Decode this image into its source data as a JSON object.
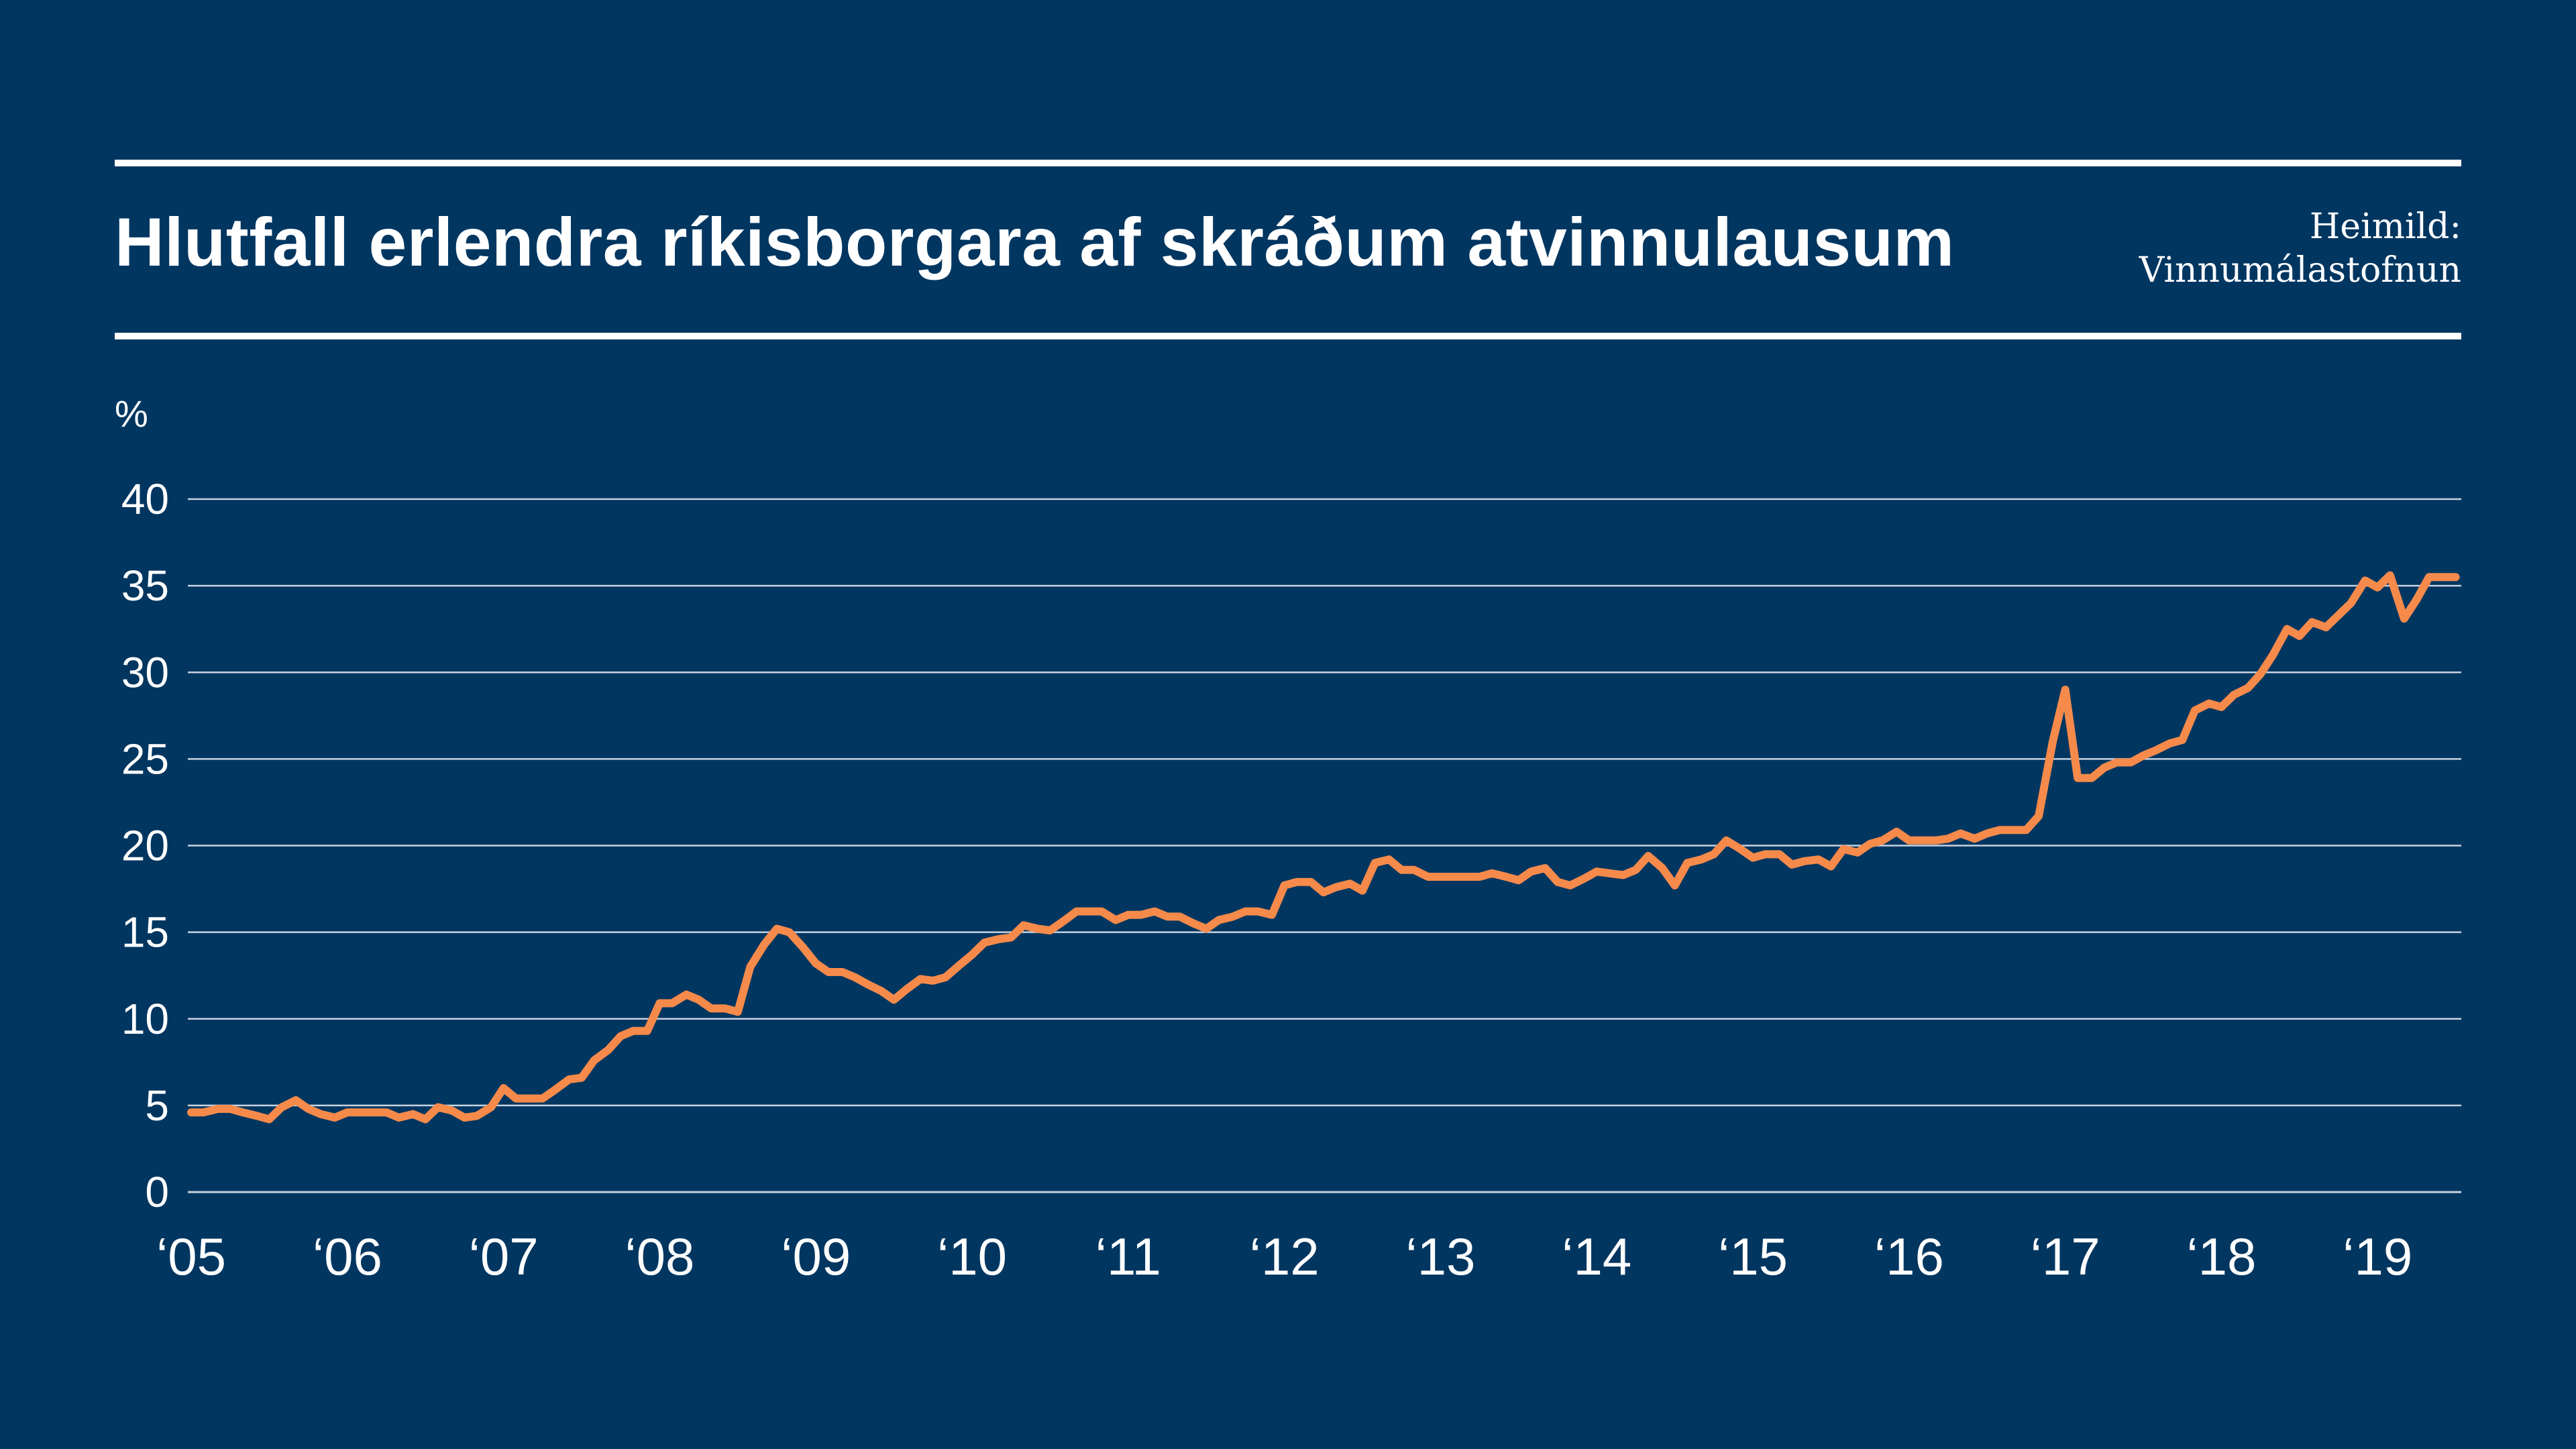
{
  "header": {
    "title": "Hlutfall erlendra ríkisborgara af skráðum atvinnulausum",
    "source_label": "Heimild:",
    "source_name": "Vinnumálastofnun"
  },
  "colors": {
    "background": "#003660",
    "text": "#ffffff",
    "gridline": "#c8d2e0",
    "series": "#f58a4b"
  },
  "chart_data": {
    "type": "line",
    "title": "Hlutfall erlendra ríkisborgara af skráðum atvinnulausum",
    "ylabel": "%",
    "xlabel": "",
    "ylim": [
      0,
      40
    ],
    "yticks": [
      0,
      5,
      10,
      15,
      20,
      25,
      30,
      35,
      40
    ],
    "yticks_labels": [
      "0",
      "5",
      "10",
      "15",
      "20",
      "25",
      "30",
      "35",
      "40"
    ],
    "xlim": [
      2005,
      2019.5
    ],
    "xticks": [
      2005,
      2006,
      2007,
      2008,
      2009,
      2010,
      2011,
      2012,
      2013,
      2014,
      2015,
      2016,
      2017,
      2018,
      2019
    ],
    "xtick_labels": [
      "‘05",
      "‘06",
      "‘07",
      "‘08",
      "‘09",
      "‘10",
      "‘11",
      "‘12",
      "‘13",
      "‘14",
      "‘15",
      "‘16",
      "‘17",
      "‘18",
      "‘19"
    ],
    "grid": true,
    "legend": "none",
    "series": [
      {
        "color": "#f58a4b",
        "x": [
          2005.0,
          2005.08,
          2005.17,
          2005.25,
          2005.33,
          2005.42,
          2005.5,
          2005.58,
          2005.67,
          2005.75,
          2005.83,
          2005.92,
          2006.0,
          2006.08,
          2006.17,
          2006.25,
          2006.33,
          2006.42,
          2006.5,
          2006.58,
          2006.67,
          2006.75,
          2006.83,
          2006.92,
          2007.0,
          2007.08,
          2007.17,
          2007.25,
          2007.33,
          2007.42,
          2007.5,
          2007.58,
          2007.67,
          2007.75,
          2007.83,
          2007.92,
          2008.0,
          2008.08,
          2008.17,
          2008.25,
          2008.33,
          2008.42,
          2008.5,
          2008.58,
          2008.67,
          2008.75,
          2008.83,
          2008.92,
          2009.0,
          2009.08,
          2009.17,
          2009.25,
          2009.33,
          2009.42,
          2009.5,
          2009.58,
          2009.67,
          2009.75,
          2009.83,
          2009.92,
          2010.0,
          2010.08,
          2010.17,
          2010.25,
          2010.33,
          2010.42,
          2010.5,
          2010.58,
          2010.67,
          2010.75,
          2010.83,
          2010.92,
          2011.0,
          2011.08,
          2011.17,
          2011.25,
          2011.33,
          2011.42,
          2011.5,
          2011.58,
          2011.67,
          2011.75,
          2011.83,
          2011.92,
          2012.0,
          2012.08,
          2012.17,
          2012.25,
          2012.33,
          2012.42,
          2012.5,
          2012.58,
          2012.67,
          2012.75,
          2012.83,
          2012.92,
          2013.0,
          2013.08,
          2013.17,
          2013.25,
          2013.33,
          2013.42,
          2013.5,
          2013.58,
          2013.67,
          2013.75,
          2013.83,
          2013.92,
          2014.0,
          2014.08,
          2014.17,
          2014.25,
          2014.33,
          2014.42,
          2014.5,
          2014.58,
          2014.67,
          2014.75,
          2014.83,
          2014.92,
          2015.0,
          2015.08,
          2015.17,
          2015.25,
          2015.33,
          2015.42,
          2015.5,
          2015.58,
          2015.67,
          2015.75,
          2015.83,
          2015.92,
          2016.0,
          2016.08,
          2016.17,
          2016.25,
          2016.33,
          2016.42,
          2016.5,
          2016.58,
          2016.67,
          2016.75,
          2016.83,
          2016.92,
          2017.0,
          2017.08,
          2017.17,
          2017.25,
          2017.33,
          2017.42,
          2017.5,
          2017.58,
          2017.67,
          2017.75,
          2017.83,
          2017.92,
          2018.0,
          2018.08,
          2018.17,
          2018.25,
          2018.33,
          2018.42,
          2018.5,
          2018.58,
          2018.67,
          2018.75,
          2018.83,
          2018.92,
          2019.0,
          2019.08,
          2019.17,
          2019.25,
          2019.33,
          2019.42,
          2019.5
        ],
        "values": [
          4.6,
          4.6,
          4.8,
          4.8,
          4.6,
          4.4,
          4.2,
          4.9,
          5.3,
          4.8,
          4.5,
          4.3,
          4.6,
          4.6,
          4.6,
          4.6,
          4.3,
          4.5,
          4.2,
          4.9,
          4.7,
          4.3,
          4.4,
          4.9,
          6.0,
          5.4,
          5.4,
          5.4,
          5.9,
          6.5,
          6.6,
          7.6,
          8.2,
          9.0,
          9.3,
          9.3,
          10.9,
          10.9,
          11.4,
          11.1,
          10.6,
          10.6,
          10.4,
          13.0,
          14.3,
          15.2,
          15.0,
          14.1,
          13.2,
          12.7,
          12.7,
          12.4,
          12.0,
          11.6,
          11.1,
          11.7,
          12.3,
          12.2,
          12.4,
          13.1,
          13.7,
          14.4,
          14.6,
          14.7,
          15.4,
          15.2,
          15.1,
          15.6,
          16.2,
          16.2,
          16.2,
          15.7,
          16.0,
          16.0,
          16.2,
          15.9,
          15.9,
          15.5,
          15.2,
          15.7,
          15.9,
          16.2,
          16.2,
          16.0,
          17.7,
          17.9,
          17.9,
          17.3,
          17.6,
          17.8,
          17.4,
          19.0,
          19.2,
          18.6,
          18.6,
          18.2,
          18.2,
          18.2,
          18.2,
          18.2,
          18.4,
          18.2,
          18.0,
          18.5,
          18.7,
          17.9,
          17.7,
          18.1,
          18.5,
          18.4,
          18.3,
          18.6,
          19.4,
          18.7,
          17.7,
          19.0,
          19.2,
          19.5,
          20.3,
          19.8,
          19.3,
          19.5,
          19.5,
          18.9,
          19.1,
          19.2,
          18.8,
          19.8,
          19.6,
          20.1,
          20.3,
          20.8,
          20.3,
          20.3,
          20.3,
          20.4,
          20.7,
          20.4,
          20.7,
          20.9,
          20.9,
          20.9,
          21.7,
          26.0,
          29.0,
          23.9,
          23.9,
          24.5,
          24.8,
          24.8,
          25.2,
          25.5,
          25.9,
          26.1,
          27.8,
          28.2,
          28.0,
          28.7,
          29.1,
          29.9,
          31.0,
          32.5,
          32.1,
          32.9,
          32.6,
          33.3,
          34.0,
          35.3,
          34.9,
          35.6,
          33.1,
          34.2,
          35.5,
          35.5,
          35.5
        ]
      }
    ]
  }
}
